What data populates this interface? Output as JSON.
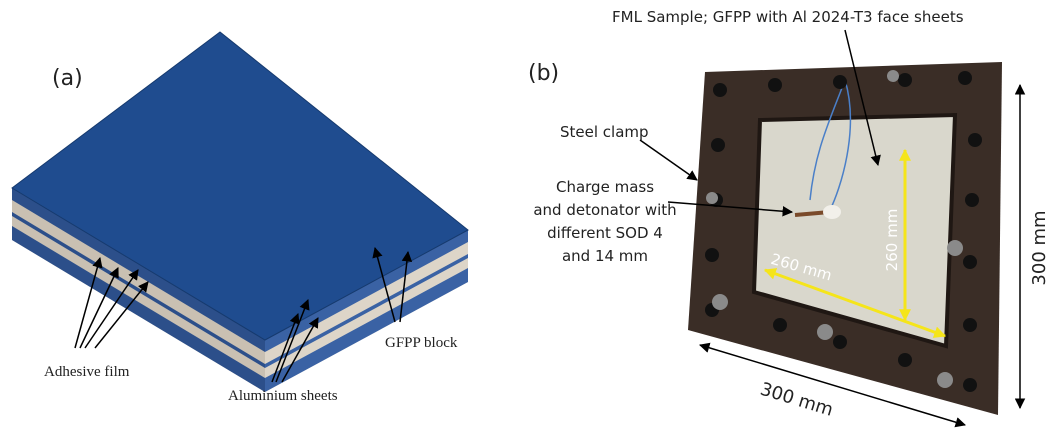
{
  "panel_a": {
    "label": "(a)",
    "annotations": [
      "Adhesive film",
      "Aluminium sheets",
      "GFPP block"
    ]
  },
  "panel_b": {
    "label": "(b)",
    "sample_caption": "FML Sample; GFPP with Al 2024-T3 face sheets",
    "clamp": "Steel clamp",
    "charge": [
      "Charge mass",
      "and detonator with",
      "different SOD 4",
      "and 14 mm"
    ],
    "inner_height": "260 mm",
    "inner_width": "260 mm",
    "outer_height": "300 mm",
    "outer_width": "300 mm"
  }
}
